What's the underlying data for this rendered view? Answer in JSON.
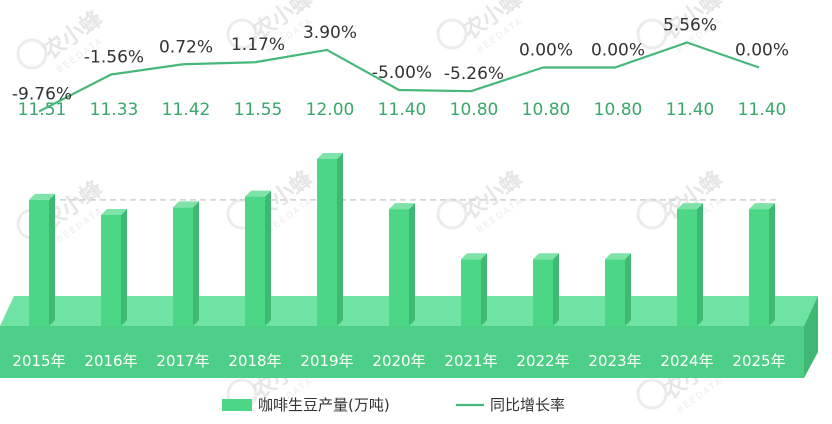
{
  "chart_data": {
    "type": "bar",
    "categories": [
      "2015年",
      "2016年",
      "2017年",
      "2018年",
      "2019年",
      "2020年",
      "2021年",
      "2022年",
      "2023年",
      "2024年",
      "2025年"
    ],
    "series": [
      {
        "name": "咖啡生豆产量(万吨)",
        "type": "bar",
        "values": [
          11.51,
          11.33,
          11.42,
          11.55,
          12.0,
          11.4,
          10.8,
          10.8,
          10.8,
          11.4,
          11.4
        ],
        "labels": [
          "11.51",
          "11.33",
          "11.42",
          "11.55",
          "12.00",
          "11.40",
          "10.80",
          "10.80",
          "10.80",
          "11.40",
          "11.40"
        ]
      },
      {
        "name": "同比增长率",
        "type": "line",
        "values": [
          -9.76,
          -1.56,
          0.72,
          1.17,
          3.9,
          -5.0,
          -5.26,
          0.0,
          0.0,
          5.56,
          0.0
        ],
        "labels": [
          "-9.76%",
          "-1.56%",
          "0.72%",
          "1.17%",
          "3.90%",
          "-5.00%",
          "-5.26%",
          "0.00%",
          "0.00%",
          "5.56%",
          "0.00%"
        ]
      }
    ],
    "legend_position": "bottom-center",
    "grid": false,
    "colors": {
      "bar": "#4cd787",
      "bar_side": "#3fb874",
      "bar_top": "#7ee3a8",
      "floor": "#6fe3a3",
      "floor_front": "#4ecf87",
      "line": "#46b87a",
      "bar_label": "#3aa86a",
      "rate_label": "#333333"
    }
  },
  "watermark": {
    "text": "农小蜂",
    "subtext": "BEEDATA"
  }
}
